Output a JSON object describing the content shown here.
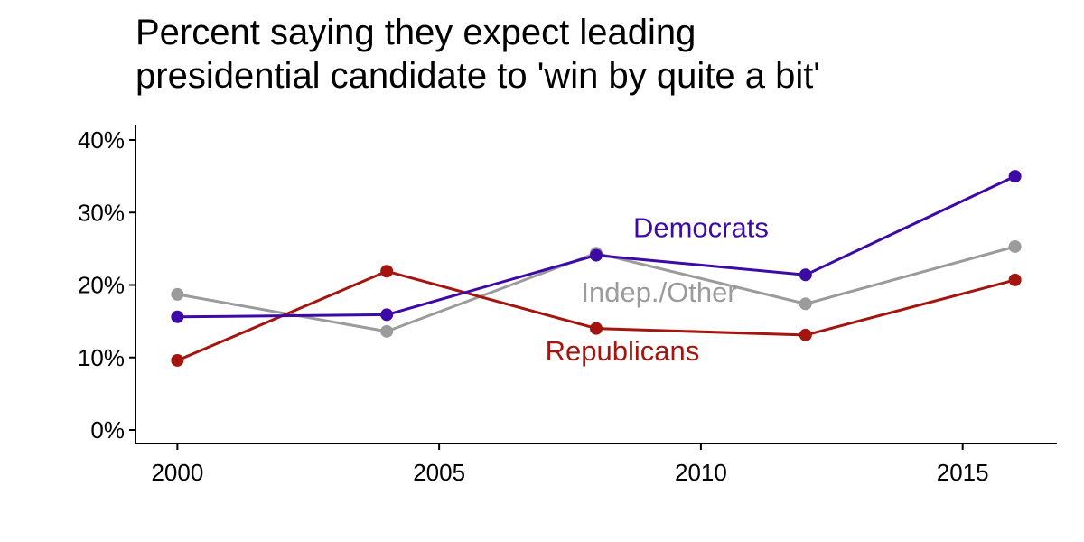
{
  "chart_data": {
    "type": "line",
    "title_lines": [
      "Percent saying they expect leading",
      "presidential candidate to 'win by quite a bit'"
    ],
    "xlabel": "",
    "ylabel": "",
    "x": [
      2000,
      2004,
      2008,
      2012,
      2016
    ],
    "xlim": [
      1999.2,
      2016.8
    ],
    "ylim": [
      0,
      40
    ],
    "x_ticks": [
      {
        "value": 2000,
        "label": "2000"
      },
      {
        "value": 2005,
        "label": "2005"
      },
      {
        "value": 2010,
        "label": "2010"
      },
      {
        "value": 2015,
        "label": "2015"
      }
    ],
    "y_ticks": [
      {
        "value": 0,
        "label": "0%"
      },
      {
        "value": 10,
        "label": "10%"
      },
      {
        "value": 20,
        "label": "20%"
      },
      {
        "value": 30,
        "label": "30%"
      },
      {
        "value": 40,
        "label": "40%"
      }
    ],
    "grid": false,
    "legend": "none (direct labels)",
    "series": [
      {
        "name": "Indep./Other",
        "key": "indep",
        "color": "#9b9b9b",
        "values": [
          18.7,
          13.6,
          24.4,
          17.4,
          25.3
        ],
        "label_at": {
          "x": 2009.2,
          "y": 17.7
        }
      },
      {
        "name": "Republicans",
        "key": "republicans",
        "color": "#a5150f",
        "values": [
          9.6,
          21.9,
          14.0,
          13.1,
          20.7
        ],
        "label_at": {
          "x": 2008.5,
          "y": 9.6
        }
      },
      {
        "name": "Democrats",
        "key": "democrats",
        "color": "#3d0aa8",
        "values": [
          15.6,
          15.9,
          24.1,
          21.4,
          35.0
        ],
        "label_at": {
          "x": 2010.0,
          "y": 26.6
        }
      }
    ]
  }
}
